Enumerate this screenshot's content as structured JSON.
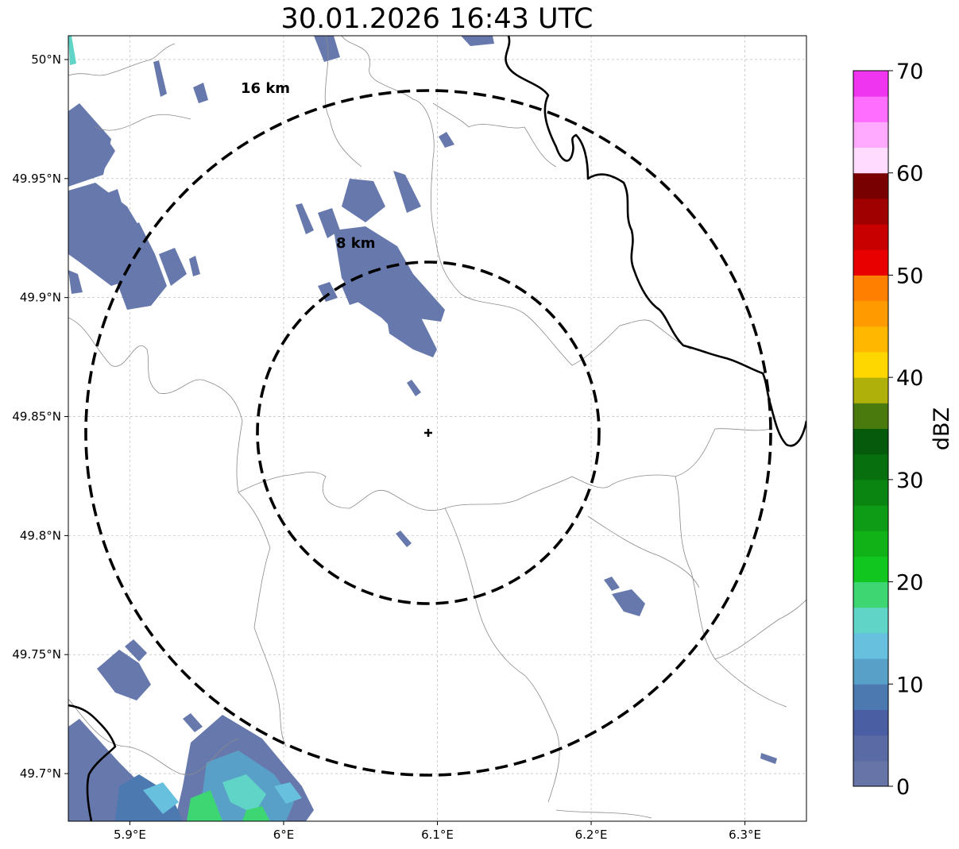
{
  "title": "30.01.2026 16:43 UTC",
  "map": {
    "lon_range": [
      5.86,
      6.34
    ],
    "lat_range": [
      49.68,
      50.01
    ],
    "x_ticks": [
      {
        "value": 5.9,
        "label": "5.9°E"
      },
      {
        "value": 6.0,
        "label": "6°E"
      },
      {
        "value": 6.1,
        "label": "6.1°E"
      },
      {
        "value": 6.2,
        "label": "6.2°E"
      },
      {
        "value": 6.3,
        "label": "6.3°E"
      }
    ],
    "y_ticks": [
      {
        "value": 50.0,
        "label": "50°N"
      },
      {
        "value": 49.95,
        "label": "49.95°N"
      },
      {
        "value": 49.9,
        "label": "49.9°N"
      },
      {
        "value": 49.85,
        "label": "49.85°N"
      },
      {
        "value": 49.8,
        "label": "49.8°N"
      },
      {
        "value": 49.75,
        "label": "49.75°N"
      },
      {
        "value": 49.7,
        "label": "49.7°N"
      }
    ],
    "grid": true,
    "radar_site": {
      "lon": 6.094,
      "lat": 49.843
    },
    "range_rings": [
      {
        "radius_km": 8,
        "label": "8 km"
      },
      {
        "radius_km": 16,
        "label": "16 km"
      }
    ]
  },
  "colorbar": {
    "label": "dBZ",
    "min": 0,
    "max": 70,
    "tick_labels": [
      "0",
      "10",
      "20",
      "30",
      "40",
      "50",
      "60",
      "70"
    ],
    "colors": [
      "#6674a8",
      "#5a6aa4",
      "#4a5fa3",
      "#4b79b0",
      "#58a0c8",
      "#66c0de",
      "#60d4c6",
      "#3dd673",
      "#11c61e",
      "#10b218",
      "#0e9b15",
      "#0a8512",
      "#076f0e",
      "#055a0b",
      "#4a7a0d",
      "#b0b00a",
      "#ffd700",
      "#ffb700",
      "#ff9a00",
      "#ff7f00",
      "#e80000",
      "#c80000",
      "#a00000",
      "#780000",
      "#ffdcff",
      "#ffaaff",
      "#ff6eff",
      "#f035f0"
    ]
  }
}
